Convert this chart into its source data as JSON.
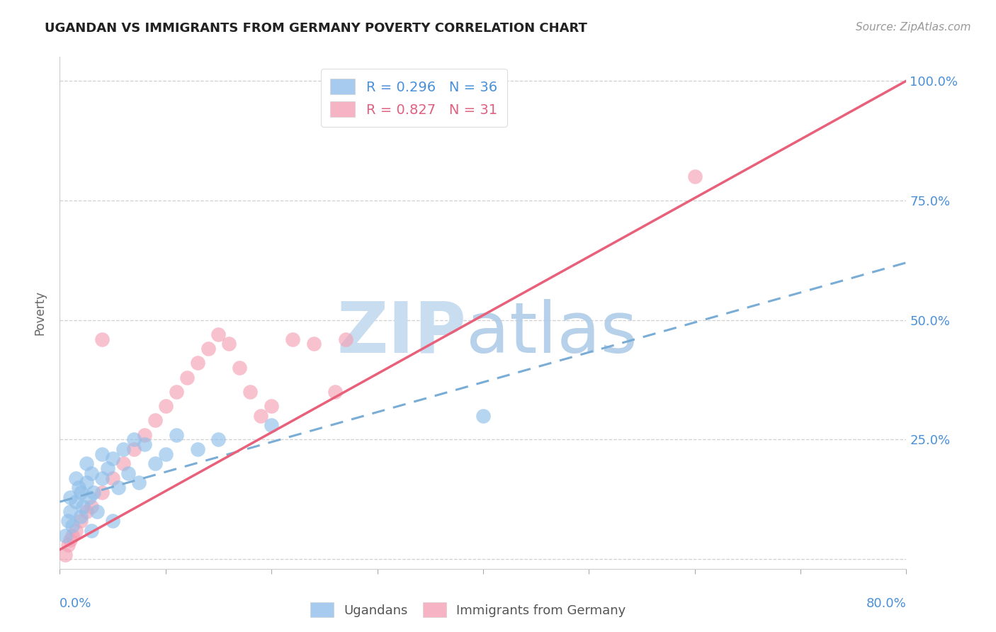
{
  "title": "UGANDAN VS IMMIGRANTS FROM GERMANY POVERTY CORRELATION CHART",
  "source_text": "Source: ZipAtlas.com",
  "ylabel": "Poverty",
  "xlim": [
    0.0,
    0.8
  ],
  "ylim": [
    -0.02,
    1.05
  ],
  "ytick_positions": [
    0.0,
    0.25,
    0.5,
    0.75,
    1.0
  ],
  "ytick_labels": [
    "",
    "25.0%",
    "50.0%",
    "75.0%",
    "100.0%"
  ],
  "xtick_positions": [
    0.0,
    0.1,
    0.2,
    0.3,
    0.4,
    0.5,
    0.6,
    0.7,
    0.8
  ],
  "ugandan_R": 0.296,
  "ugandan_N": 36,
  "germany_R": 0.827,
  "germany_N": 31,
  "ugandan_color": "#90bfea",
  "germany_color": "#f4a0b5",
  "ugandan_line_color": "#7aadd6",
  "germany_line_color": "#e8607a",
  "watermark_zip_color": "#c8ddf0",
  "watermark_atlas_color": "#b0cce8",
  "ugandan_x": [
    0.005,
    0.008,
    0.01,
    0.01,
    0.012,
    0.015,
    0.015,
    0.018,
    0.02,
    0.02,
    0.022,
    0.025,
    0.025,
    0.028,
    0.03,
    0.03,
    0.032,
    0.035,
    0.04,
    0.04,
    0.045,
    0.05,
    0.05,
    0.055,
    0.06,
    0.065,
    0.07,
    0.075,
    0.08,
    0.09,
    0.1,
    0.11,
    0.13,
    0.15,
    0.2,
    0.4
  ],
  "ugandan_y": [
    0.05,
    0.08,
    0.1,
    0.13,
    0.07,
    0.12,
    0.17,
    0.15,
    0.09,
    0.14,
    0.11,
    0.16,
    0.2,
    0.13,
    0.06,
    0.18,
    0.14,
    0.1,
    0.22,
    0.17,
    0.19,
    0.08,
    0.21,
    0.15,
    0.23,
    0.18,
    0.25,
    0.16,
    0.24,
    0.2,
    0.22,
    0.26,
    0.23,
    0.25,
    0.28,
    0.3
  ],
  "germany_x": [
    0.005,
    0.008,
    0.01,
    0.012,
    0.015,
    0.02,
    0.025,
    0.03,
    0.04,
    0.05,
    0.06,
    0.07,
    0.08,
    0.09,
    0.1,
    0.11,
    0.12,
    0.13,
    0.14,
    0.15,
    0.16,
    0.17,
    0.18,
    0.19,
    0.2,
    0.22,
    0.24,
    0.26,
    0.27,
    0.6,
    0.04
  ],
  "germany_y": [
    0.01,
    0.03,
    0.04,
    0.05,
    0.06,
    0.08,
    0.1,
    0.11,
    0.14,
    0.17,
    0.2,
    0.23,
    0.26,
    0.29,
    0.32,
    0.35,
    0.38,
    0.41,
    0.44,
    0.47,
    0.45,
    0.4,
    0.35,
    0.3,
    0.32,
    0.46,
    0.45,
    0.35,
    0.46,
    0.8,
    0.46
  ],
  "ugandan_line_x0": 0.0,
  "ugandan_line_y0": 0.12,
  "ugandan_line_x1": 0.8,
  "ugandan_line_y1": 0.62,
  "germany_line_x0": 0.0,
  "germany_line_y0": 0.02,
  "germany_line_x1": 0.8,
  "germany_line_y1": 1.0
}
